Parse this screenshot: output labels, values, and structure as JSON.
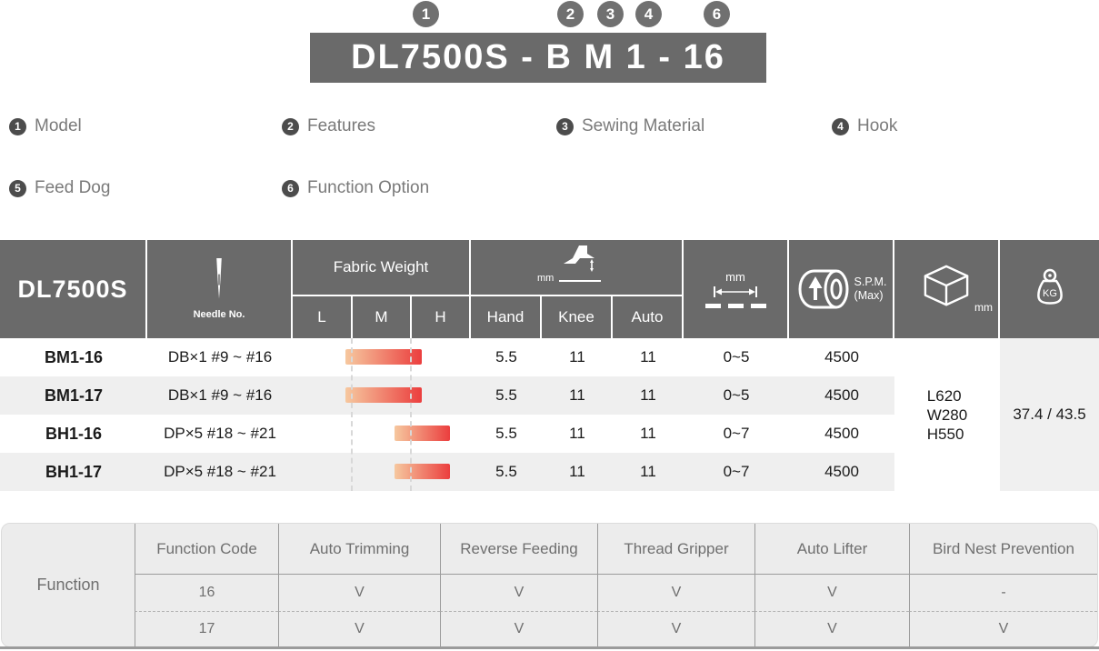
{
  "title": {
    "code": "DL7500S - B M 1 - 16",
    "markers": [
      "1",
      "2",
      "3",
      "4",
      "6"
    ]
  },
  "legend": [
    {
      "n": "1",
      "label": "Model"
    },
    {
      "n": "2",
      "label": "Features"
    },
    {
      "n": "3",
      "label": "Sewing Material"
    },
    {
      "n": "4",
      "label": "Hook"
    },
    {
      "n": "5",
      "label": "Feed Dog"
    },
    {
      "n": "6",
      "label": "Function Option"
    }
  ],
  "spec_table": {
    "brand": "DL7500S",
    "headers": {
      "needle": {
        "icon": "needle-icon",
        "label": "Needle No."
      },
      "fabric_weight": {
        "label": "Fabric Weight",
        "sub": [
          "L",
          "M",
          "H"
        ]
      },
      "presser_lift": {
        "icon": "presser-foot-lift-icon",
        "unit": "mm",
        "sub": [
          "Hand",
          "Knee",
          "Auto"
        ]
      },
      "stitch_length": {
        "icon": "stitch-length-icon",
        "unit": "mm"
      },
      "spm": {
        "icon": "speed-pulley-icon",
        "label": "S.P.M.",
        "sublabel": "(Max)"
      },
      "dimensions": {
        "icon": "dimensions-cube-icon",
        "unit": "mm"
      },
      "weight": {
        "icon": "weight-kg-icon",
        "unit": "KG"
      }
    },
    "rows": [
      {
        "model": "BM1-16",
        "needle": "DB×1  #9 ~ #16",
        "fabric_range": "L-M",
        "hand": "5.5",
        "knee": "11",
        "auto": "11",
        "stitch": "0~5",
        "spm": "4500"
      },
      {
        "model": "BM1-17",
        "needle": "DB×1  #9 ~ #16",
        "fabric_range": "L-M",
        "hand": "5.5",
        "knee": "11",
        "auto": "11",
        "stitch": "0~5",
        "spm": "4500"
      },
      {
        "model": "BH1-16",
        "needle": "DP×5  #18 ~ #21",
        "fabric_range": "M-H",
        "hand": "5.5",
        "knee": "11",
        "auto": "11",
        "stitch": "0~7",
        "spm": "4500"
      },
      {
        "model": "BH1-17",
        "needle": "DP×5  #18 ~ #21",
        "fabric_range": "M-H",
        "hand": "5.5",
        "knee": "11",
        "auto": "11",
        "stitch": "0~7",
        "spm": "4500"
      }
    ],
    "dimensions_value": [
      "L620",
      "W280",
      "H550"
    ],
    "weight_value": "37.4 / 43.5"
  },
  "function_table": {
    "row_label": "Function",
    "columns": [
      "Function Code",
      "Auto Trimming",
      "Reverse Feeding",
      "Thread Gripper",
      "Auto Lifter",
      "Bird Nest Prevention"
    ],
    "rows": [
      {
        "values": [
          "16",
          "V",
          "V",
          "V",
          "V",
          "-"
        ]
      },
      {
        "values": [
          "17",
          "V",
          "V",
          "V",
          "V",
          "V"
        ]
      }
    ]
  },
  "colors": {
    "header_gray": "#6a6a6a",
    "stripe_gray": "#efefef",
    "bar_gradient_start": "#f6c89f",
    "bar_gradient_end": "#eb3e3e",
    "legend_text": "#7a7a7a",
    "function_table_bg": "#ececec"
  }
}
